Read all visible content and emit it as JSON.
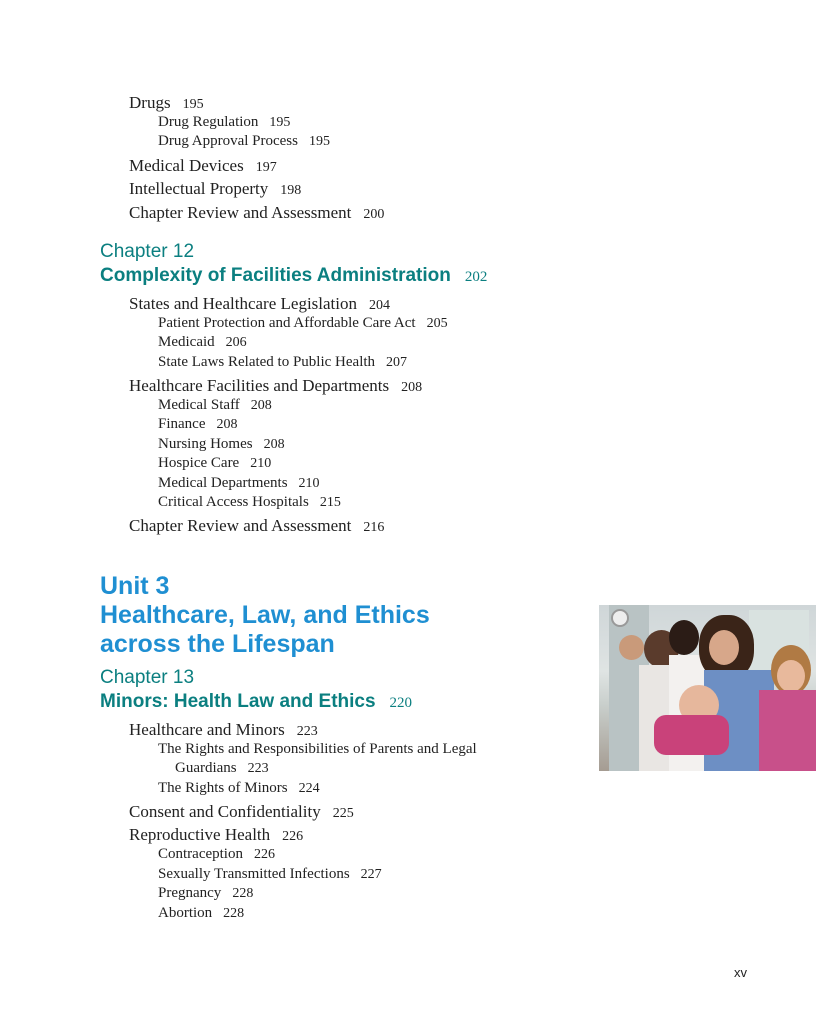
{
  "entries_top": [
    {
      "title": "Drugs",
      "page": "195"
    },
    {
      "title": "Drug Regulation",
      "page": "195"
    },
    {
      "title": "Drug Approval Process",
      "page": "195"
    },
    {
      "title": "Medical Devices",
      "page": "197"
    },
    {
      "title": "Intellectual Property",
      "page": "198"
    },
    {
      "title": "Chapter Review and Assessment",
      "page": "200"
    }
  ],
  "chapter12": {
    "label": "Chapter 12",
    "title": "Complexity of Facilities Administration",
    "page": "202",
    "entries": [
      {
        "title": "States and Healthcare Legislation",
        "page": "204"
      },
      {
        "title": "Patient Protection and Affordable Care Act",
        "page": "205"
      },
      {
        "title": "Medicaid",
        "page": "206"
      },
      {
        "title": "State Laws Related to Public Health",
        "page": "207"
      },
      {
        "title": "Healthcare Facilities and Departments",
        "page": "208"
      },
      {
        "title": "Medical Staff",
        "page": "208"
      },
      {
        "title": "Finance",
        "page": "208"
      },
      {
        "title": "Nursing Homes",
        "page": "208"
      },
      {
        "title": "Hospice Care",
        "page": "210"
      },
      {
        "title": "Medical Departments",
        "page": "210"
      },
      {
        "title": "Critical Access Hospitals",
        "page": "215"
      },
      {
        "title": "Chapter Review and Assessment",
        "page": "216"
      }
    ]
  },
  "unit3": {
    "label": "Unit 3",
    "title_line1": "Healthcare, Law, and Ethics",
    "title_line2": "across the Lifespan"
  },
  "chapter13": {
    "label": "Chapter 13",
    "title": "Minors: Health Law and Ethics",
    "page": "220",
    "entries": [
      {
        "title": "Healthcare and Minors",
        "page": "223"
      },
      {
        "title": "The Rights and Responsibilities of Parents and Legal",
        "title_cont": "Guardians",
        "page": "223"
      },
      {
        "title": "The Rights of Minors",
        "page": "224"
      },
      {
        "title": "Consent and Confidentiality",
        "page": "225"
      },
      {
        "title": "Reproductive Health",
        "page": "226"
      },
      {
        "title": "Contraception",
        "page": "226"
      },
      {
        "title": "Sexually Transmitted Infections",
        "page": "227"
      },
      {
        "title": "Pregnancy",
        "page": "228"
      },
      {
        "title": "Abortion",
        "page": "228"
      }
    ]
  },
  "colors": {
    "chapter": "#0b7f80",
    "unit": "#1f8fd2"
  },
  "folio": "xv"
}
